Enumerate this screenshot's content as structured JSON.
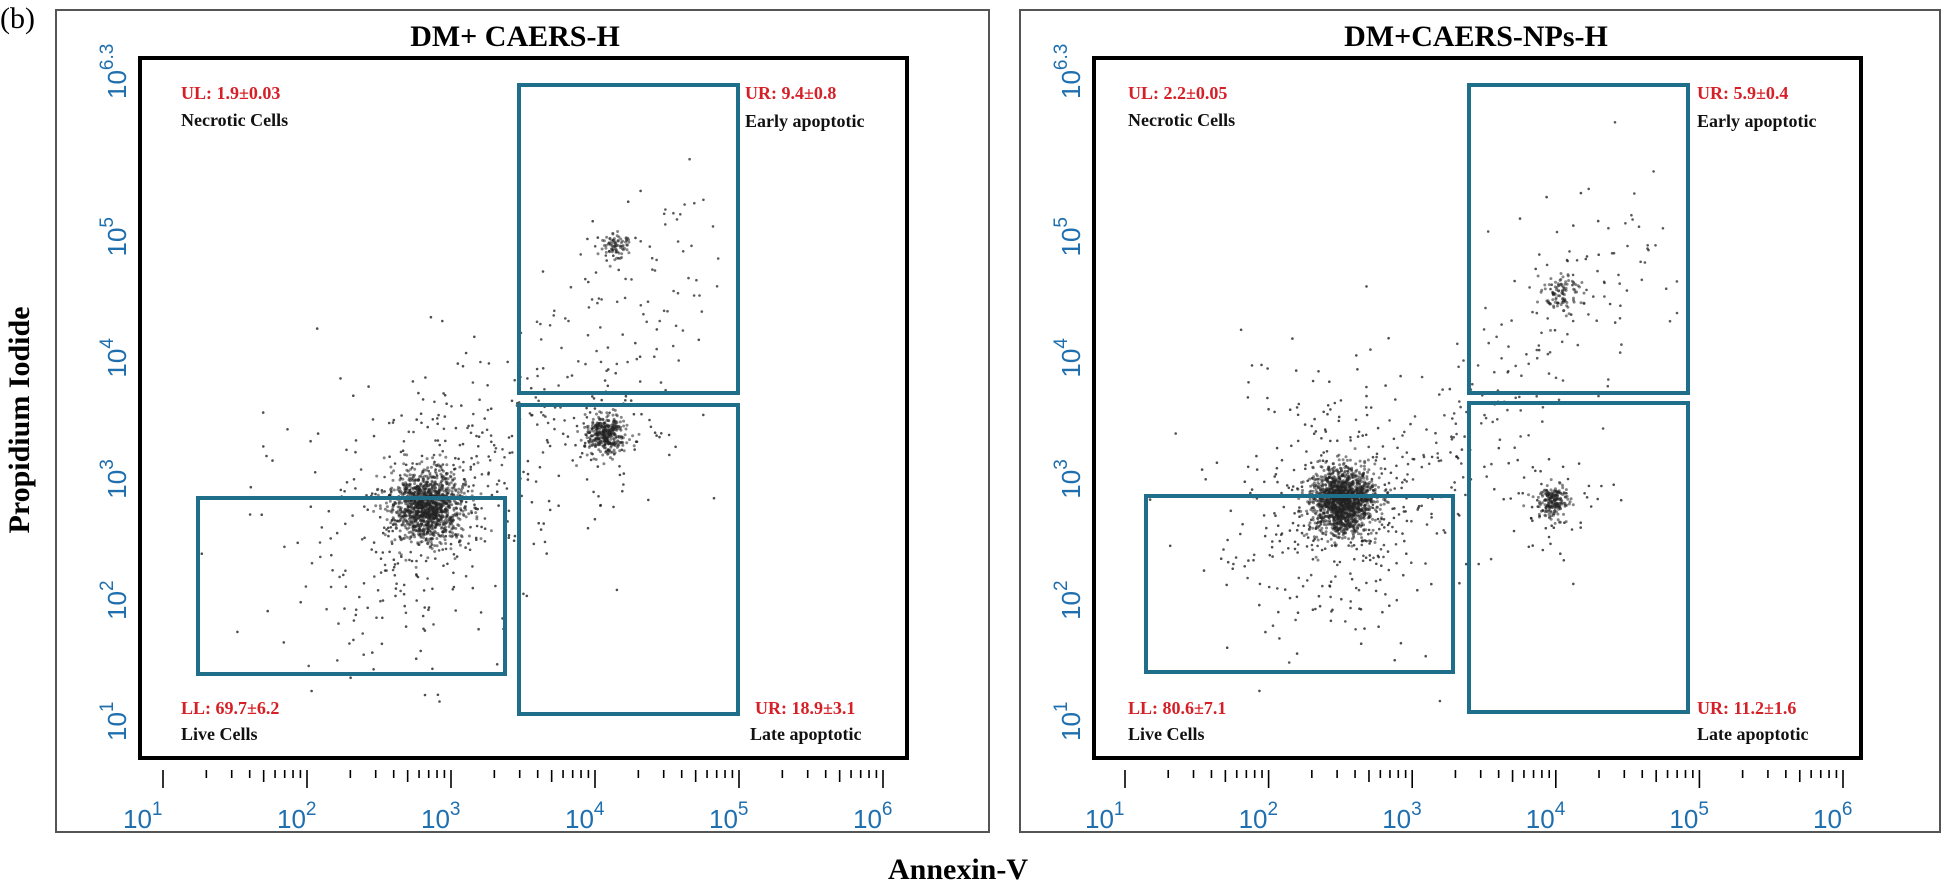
{
  "figure_label": "(b)",
  "y_axis_title": "Propidium Iodide",
  "x_axis_title": "Annexin-V",
  "colors": {
    "gate": "#1f6f8b",
    "quadrant_value": "#d62027",
    "tick": "#1f6fae",
    "dots": "#222222"
  },
  "chart_data": [
    {
      "type": "scatter",
      "title": "DM+ CAERS-H",
      "x_scale": "log",
      "y_scale": "log",
      "x_ticks": [
        "10^1",
        "10^2",
        "10^3",
        "10^4",
        "10^5",
        "10^6"
      ],
      "y_ticks": [
        "10^1",
        "10^2",
        "10^3",
        "10^4",
        "10^5",
        "10^6.3"
      ],
      "xlim": [
        10,
        1000000
      ],
      "ylim": [
        10,
        1995262
      ],
      "quadrants": [
        {
          "id": "UL",
          "value": "UL: 1.9±0.03",
          "name": "Necrotic Cells"
        },
        {
          "id": "UR",
          "value": "UR: 9.4±0.8",
          "name": "Early apoptotic"
        },
        {
          "id": "LL",
          "value": "LL: 69.7±6.2",
          "name": "Live Cells"
        },
        {
          "id": "LR",
          "value": "UR: 18.9±3.1",
          "name": "Late apoptotic"
        }
      ],
      "populations": [
        {
          "center_x": 700,
          "center_y": 600,
          "spread_log": 0.22,
          "count": 1500
        },
        {
          "center_x": 12000,
          "center_y": 2300,
          "spread_log": 0.12,
          "count": 450
        },
        {
          "center_x": 14000,
          "center_y": 85000,
          "spread_log": 0.08,
          "count": 90
        }
      ]
    },
    {
      "type": "scatter",
      "title": "DM+CAERS-NPs-H",
      "x_scale": "log",
      "y_scale": "log",
      "x_ticks": [
        "10^1",
        "10^2",
        "10^3",
        "10^4",
        "10^5",
        "10^6"
      ],
      "y_ticks": [
        "10^1",
        "10^2",
        "10^3",
        "10^4",
        "10^5",
        "10^6.3"
      ],
      "xlim": [
        10,
        1000000
      ],
      "ylim": [
        10,
        1995262
      ],
      "quadrants": [
        {
          "id": "UL",
          "value": "UL: 2.2±0.05",
          "name": "Necrotic Cells"
        },
        {
          "id": "UR",
          "value": "UR: 5.9±0.4",
          "name": "Early apoptotic"
        },
        {
          "id": "LL",
          "value": "LL: 80.6±7.1",
          "name": "Live Cells"
        },
        {
          "id": "LR",
          "value": "UR: 11.2±1.6",
          "name": "Late apoptotic"
        }
      ],
      "populations": [
        {
          "center_x": 330,
          "center_y": 650,
          "spread_log": 0.2,
          "count": 1800
        },
        {
          "center_x": 9500,
          "center_y": 650,
          "spread_log": 0.1,
          "count": 250
        },
        {
          "center_x": 11000,
          "center_y": 33000,
          "spread_log": 0.12,
          "count": 120
        }
      ]
    }
  ]
}
